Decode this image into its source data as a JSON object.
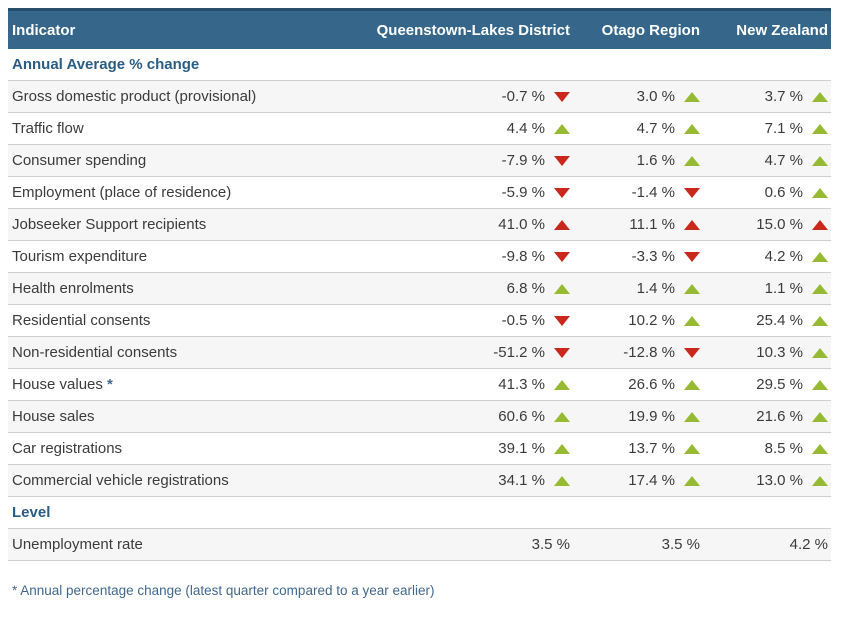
{
  "colors": {
    "header_bg": "#36678a",
    "header_top_border": "#27506e",
    "header_text": "#ffffff",
    "section_title": "#2a5d85",
    "text": "#3b3b3b",
    "row_alt_bg": "#f6f6f6",
    "border": "#cfcfcf",
    "up_green": "#96ba32",
    "down_red": "#c9281c",
    "footnote_text": "#41688f"
  },
  "chart_data": {
    "type": "table",
    "columns": [
      "Indicator",
      "Queenstown-Lakes District",
      "Otago Region",
      "New Zealand"
    ],
    "sections": [
      {
        "title": "Annual Average % change",
        "rows": [
          {
            "indicator": "Gross domestic product (provisional)",
            "values": [
              "-0.7 %",
              "3.0 %",
              "3.7 %"
            ],
            "trends": [
              "down-red",
              "up-green",
              "up-green"
            ]
          },
          {
            "indicator": "Traffic flow",
            "values": [
              "4.4 %",
              "4.7 %",
              "7.1 %"
            ],
            "trends": [
              "up-green",
              "up-green",
              "up-green"
            ]
          },
          {
            "indicator": "Consumer spending",
            "values": [
              "-7.9 %",
              "1.6 %",
              "4.7 %"
            ],
            "trends": [
              "down-red",
              "up-green",
              "up-green"
            ]
          },
          {
            "indicator": "Employment (place of residence)",
            "values": [
              "-5.9 %",
              "-1.4 %",
              "0.6 %"
            ],
            "trends": [
              "down-red",
              "down-red",
              "up-green"
            ]
          },
          {
            "indicator": "Jobseeker Support recipients",
            "values": [
              "41.0 %",
              "11.1 %",
              "15.0 %"
            ],
            "trends": [
              "up-red",
              "up-red",
              "up-red"
            ]
          },
          {
            "indicator": "Tourism expenditure",
            "values": [
              "-9.8 %",
              "-3.3 %",
              "4.2 %"
            ],
            "trends": [
              "down-red",
              "down-red",
              "up-green"
            ]
          },
          {
            "indicator": "Health enrolments",
            "values": [
              "6.8 %",
              "1.4 %",
              "1.1 %"
            ],
            "trends": [
              "up-green",
              "up-green",
              "up-green"
            ]
          },
          {
            "indicator": "Residential consents",
            "values": [
              "-0.5 %",
              "10.2 %",
              "25.4 %"
            ],
            "trends": [
              "down-red",
              "up-green",
              "up-green"
            ]
          },
          {
            "indicator": "Non-residential consents",
            "values": [
              "-51.2 %",
              "-12.8 %",
              "10.3 %"
            ],
            "trends": [
              "down-red",
              "down-red",
              "up-green"
            ]
          },
          {
            "indicator": "House values",
            "indicator_marker": "*",
            "values": [
              "41.3 %",
              "26.6 %",
              "29.5 %"
            ],
            "trends": [
              "up-green",
              "up-green",
              "up-green"
            ]
          },
          {
            "indicator": "House sales",
            "values": [
              "60.6 %",
              "19.9 %",
              "21.6 %"
            ],
            "trends": [
              "up-green",
              "up-green",
              "up-green"
            ]
          },
          {
            "indicator": "Car registrations",
            "values": [
              "39.1 %",
              "13.7 %",
              "8.5 %"
            ],
            "trends": [
              "up-green",
              "up-green",
              "up-green"
            ]
          },
          {
            "indicator": "Commercial vehicle registrations",
            "values": [
              "34.1 %",
              "17.4 %",
              "13.0 %"
            ],
            "trends": [
              "up-green",
              "up-green",
              "up-green"
            ]
          }
        ]
      },
      {
        "title": "Level",
        "rows": [
          {
            "indicator": "Unemployment rate",
            "values": [
              "3.5 %",
              "3.5 %",
              "4.2 %"
            ],
            "trends": [
              null,
              null,
              null
            ]
          }
        ]
      }
    ],
    "footnote": "* Annual percentage change (latest quarter compared to a year earlier)"
  }
}
